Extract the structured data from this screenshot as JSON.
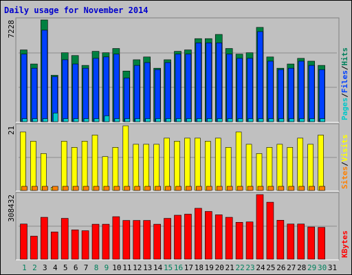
{
  "chart_data": [
    {
      "type": "bar",
      "title": "Daily usage for November 2014",
      "panel": "pages-files-hits",
      "ymax_label": "7228",
      "ylim": [
        0,
        7228
      ],
      "legend": [
        "Pages",
        "/",
        "Files",
        "/",
        "Hits"
      ],
      "legend_colors": [
        "#00c8c8",
        "#000000",
        "#0040ff",
        "#000000",
        "#00805c"
      ],
      "categories": [
        "1",
        "2",
        "3",
        "4",
        "5",
        "6",
        "7",
        "8",
        "9",
        "10",
        "11",
        "12",
        "13",
        "14",
        "15",
        "16",
        "17",
        "18",
        "19",
        "20",
        "21",
        "22",
        "23",
        "24",
        "25",
        "26",
        "27",
        "28",
        "29",
        "30",
        "31"
      ],
      "series": [
        {
          "name": "Hits",
          "color": "#008040",
          "values": [
            5100,
            4100,
            7228,
            3300,
            4900,
            4700,
            4000,
            5000,
            4900,
            5200,
            3600,
            4400,
            4600,
            3800,
            4400,
            5000,
            5100,
            5900,
            5900,
            6200,
            5200,
            4800,
            4900,
            6700,
            4600,
            3800,
            4100,
            4500,
            4300,
            4000,
            0
          ]
        },
        {
          "name": "Files",
          "color": "#0040ff",
          "values": [
            4800,
            3800,
            6500,
            3200,
            4400,
            4100,
            3800,
            4500,
            4600,
            4800,
            3100,
            4000,
            4200,
            3700,
            4200,
            4800,
            4800,
            5600,
            5600,
            5600,
            4800,
            4500,
            4500,
            6400,
            4300,
            3700,
            3800,
            4300,
            4000,
            3700,
            0
          ]
        },
        {
          "name": "Pages",
          "color": "#00c8c8",
          "values": [
            120,
            120,
            120,
            520,
            120,
            120,
            120,
            120,
            320,
            120,
            120,
            120,
            120,
            120,
            120,
            120,
            120,
            120,
            120,
            120,
            120,
            120,
            120,
            120,
            120,
            120,
            120,
            120,
            120,
            120,
            0
          ]
        }
      ]
    },
    {
      "type": "bar",
      "panel": "visits-sites",
      "ymax_label": "21",
      "ylim": [
        0,
        21
      ],
      "legend": [
        "Sites",
        "/",
        "Visits"
      ],
      "legend_colors": [
        "#ff8000",
        "#000000",
        "#ffff00"
      ],
      "categories": [
        "1",
        "2",
        "3",
        "4",
        "5",
        "6",
        "7",
        "8",
        "9",
        "10",
        "11",
        "12",
        "13",
        "14",
        "15",
        "16",
        "17",
        "18",
        "19",
        "20",
        "21",
        "22",
        "23",
        "24",
        "25",
        "26",
        "27",
        "28",
        "29",
        "30",
        "31"
      ],
      "series": [
        {
          "name": "Visits",
          "color": "#ffff00",
          "values": [
            19,
            16,
            12,
            1,
            16,
            14,
            16,
            18,
            11,
            14,
            21,
            15,
            15,
            15,
            17,
            16,
            17,
            17,
            16,
            17,
            14,
            19,
            15,
            12,
            14,
            15,
            14,
            17,
            15,
            18,
            0
          ]
        },
        {
          "name": "Sites",
          "color": "#ff8000",
          "values": [
            1,
            1,
            1,
            1,
            1,
            1,
            1,
            1,
            1,
            1,
            1,
            1,
            1,
            1,
            1,
            1,
            1,
            1,
            1,
            1,
            1,
            1,
            1,
            1,
            1,
            1,
            1,
            1,
            1,
            1,
            0
          ]
        }
      ]
    },
    {
      "type": "bar",
      "panel": "kbytes",
      "ymax_label": "308432",
      "ylim": [
        0,
        308432
      ],
      "legend": [
        "KBytes"
      ],
      "legend_colors": [
        "#ff0000"
      ],
      "categories": [
        "1",
        "2",
        "3",
        "4",
        "5",
        "6",
        "7",
        "8",
        "9",
        "10",
        "11",
        "12",
        "13",
        "14",
        "15",
        "16",
        "17",
        "18",
        "19",
        "20",
        "21",
        "22",
        "23",
        "24",
        "25",
        "26",
        "27",
        "28",
        "29",
        "30",
        "31"
      ],
      "series": [
        {
          "name": "KBytes",
          "color": "#ff0000",
          "values": [
            168000,
            110000,
            200000,
            130000,
            195000,
            140000,
            136000,
            167000,
            167000,
            203000,
            185000,
            185000,
            185000,
            167000,
            195000,
            210000,
            215000,
            243000,
            228000,
            212000,
            200000,
            176000,
            178000,
            308432,
            272000,
            186000,
            168000,
            168000,
            154000,
            152000,
            0
          ]
        }
      ]
    }
  ],
  "day_labels": [
    "1",
    "2",
    "3",
    "4",
    "5",
    "6",
    "7",
    "8",
    "9",
    "10",
    "11",
    "12",
    "13",
    "14",
    "15",
    "16",
    "17",
    "18",
    "19",
    "20",
    "21",
    "22",
    "23",
    "24",
    "25",
    "26",
    "27",
    "28",
    "29",
    "30",
    "31"
  ],
  "weekend_days": [
    "1",
    "2",
    "8",
    "9",
    "15",
    "16",
    "22",
    "23",
    "29",
    "30"
  ],
  "colors": {
    "panel_bg": "#c0c0c0",
    "outer_bg": "#c0c0c0",
    "title": "#0000cc",
    "weekday_label": "#000000",
    "weekend_label": "#00805c",
    "gridline": "#8c8c8c",
    "bar_outline": "#000000"
  }
}
